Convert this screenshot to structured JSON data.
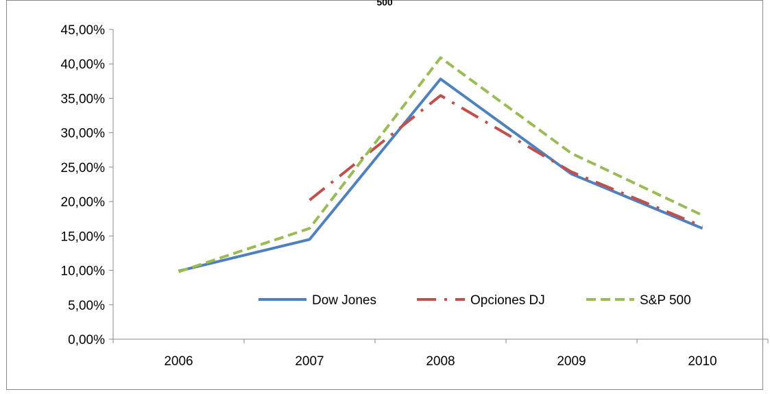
{
  "chart_data": {
    "type": "line",
    "title_fragment": "500",
    "categories": [
      "2006",
      "2007",
      "2008",
      "2009",
      "2010"
    ],
    "ylim": [
      0,
      0.45
    ],
    "y_ticks": [
      {
        "value": 0.0,
        "label": "0,00%"
      },
      {
        "value": 0.05,
        "label": "5,00%"
      },
      {
        "value": 0.1,
        "label": "10,00%"
      },
      {
        "value": 0.15,
        "label": "15,00%"
      },
      {
        "value": 0.2,
        "label": "20,00%"
      },
      {
        "value": 0.25,
        "label": "25,00%"
      },
      {
        "value": 0.3,
        "label": "30,00%"
      },
      {
        "value": 0.35,
        "label": "35,00%"
      },
      {
        "value": 0.4,
        "label": "40,00%"
      },
      {
        "value": 0.45,
        "label": "45,00%"
      }
    ],
    "grid": false,
    "legend_position": "inside-bottom-right",
    "series": [
      {
        "name": "Dow Jones",
        "color": "#4f81bd",
        "dash": "solid",
        "values": [
          0.099,
          0.145,
          0.378,
          0.24,
          0.161
        ]
      },
      {
        "name": "Opciones DJ",
        "color": "#c0504d",
        "dash": "long-dash-dot",
        "values": [
          null,
          0.202,
          0.354,
          0.243,
          0.164
        ]
      },
      {
        "name": "S&P 500",
        "color": "#9bbb59",
        "dash": "dash",
        "values": [
          0.098,
          0.161,
          0.409,
          0.27,
          0.18
        ]
      }
    ]
  }
}
